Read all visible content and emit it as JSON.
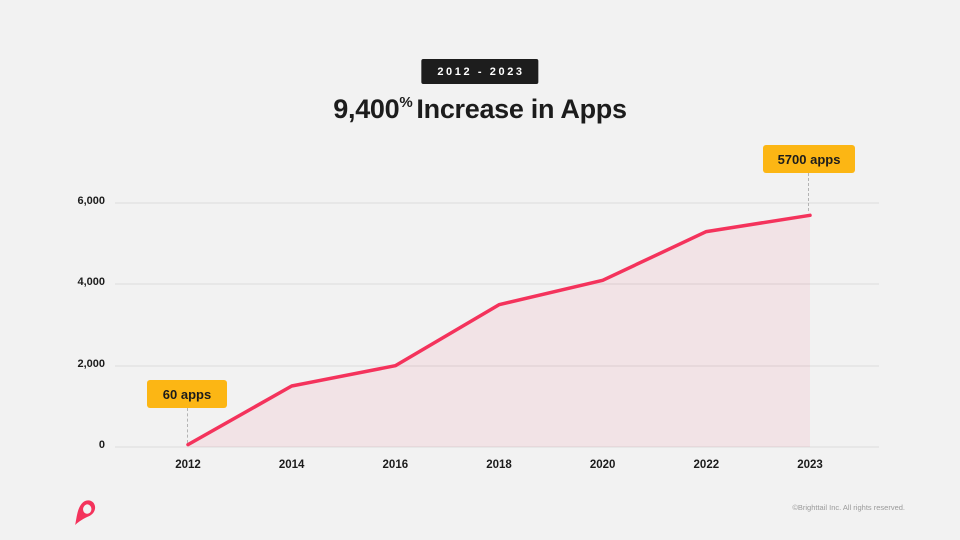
{
  "slide": {
    "range_badge": "2012 - 2023",
    "title": {
      "number": "9,400",
      "percent": "%",
      "rest": "Increase in Apps"
    },
    "footer": {
      "copyright": "©Brighttail Inc. All rights reserved."
    }
  },
  "colors": {
    "background": "#F2F2F2",
    "accent_pink": "#F4335C",
    "area_fill": "rgba(244, 48, 92, 0.08)",
    "badge_yellow": "#FCB614",
    "badge_black": "#1D1D1D",
    "text_dark": "#1C1C1C",
    "gridline": "#E7E7E7",
    "connector_gray": "#B3B3B3",
    "copyright_gray": "#9A9A9A"
  },
  "chart_data": {
    "type": "area",
    "title": "9,400% Increase in Apps",
    "subtitle_badge": "2012 - 2023",
    "categories": [
      2012,
      2014,
      2016,
      2018,
      2020,
      2022,
      2023
    ],
    "values": [
      60,
      1500,
      2000,
      3500,
      4100,
      5300,
      5700
    ],
    "x_tick_labels": [
      "2012",
      "2014",
      "2016",
      "2018",
      "2020",
      "2022",
      "2023"
    ],
    "y_ticks": [
      0,
      2000,
      4000,
      6000
    ],
    "y_tick_labels": [
      "0",
      "2,000",
      "4,000",
      "6,000"
    ],
    "ylim": [
      0,
      6500
    ],
    "xlabel": "",
    "ylabel": "",
    "grid": "horizontal",
    "legend": "none",
    "line_color": "#F4335C",
    "annotations": [
      {
        "label": "60 apps",
        "x": 2012,
        "value": 60
      },
      {
        "label": "5700 apps",
        "x": 2023,
        "value": 5700
      }
    ]
  }
}
